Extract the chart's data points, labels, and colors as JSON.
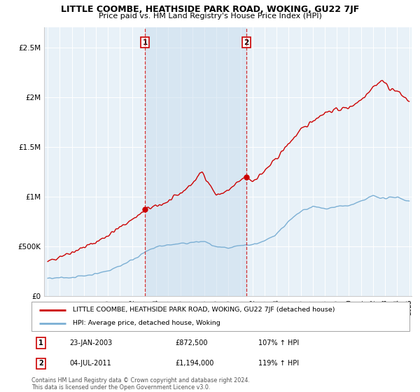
{
  "title": "LITTLE COOMBE, HEATHSIDE PARK ROAD, WOKING, GU22 7JF",
  "subtitle": "Price paid vs. HM Land Registry's House Price Index (HPI)",
  "legend_line1": "LITTLE COOMBE, HEATHSIDE PARK ROAD, WOKING, GU22 7JF (detached house)",
  "legend_line2": "HPI: Average price, detached house, Woking",
  "annotation1_label": "1",
  "annotation1_date": "23-JAN-2003",
  "annotation1_price": "£872,500",
  "annotation1_hpi": "107% ↑ HPI",
  "annotation2_label": "2",
  "annotation2_date": "04-JUL-2011",
  "annotation2_price": "£1,194,000",
  "annotation2_hpi": "119% ↑ HPI",
  "footer": "Contains HM Land Registry data © Crown copyright and database right 2024.\nThis data is licensed under the Open Government Licence v3.0.",
  "red_color": "#cc0000",
  "blue_color": "#7bafd4",
  "shade_color": "#d6e8f5",
  "bg_fill": "#e8f1f8",
  "grid_color": "#ffffff",
  "ylim": [
    0,
    2700000
  ],
  "yticks": [
    0,
    500000,
    1000000,
    1500000,
    2000000,
    2500000
  ],
  "ytick_labels": [
    "£0",
    "£500K",
    "£1M",
    "£1.5M",
    "£2M",
    "£2.5M"
  ],
  "x_start_year": 1995,
  "x_end_year": 2025,
  "sale1_year": 2003.07,
  "sale1_price": 872500,
  "sale2_year": 2011.5,
  "sale2_price": 1194000,
  "vline1_year": 2003.07,
  "vline2_year": 2011.5
}
